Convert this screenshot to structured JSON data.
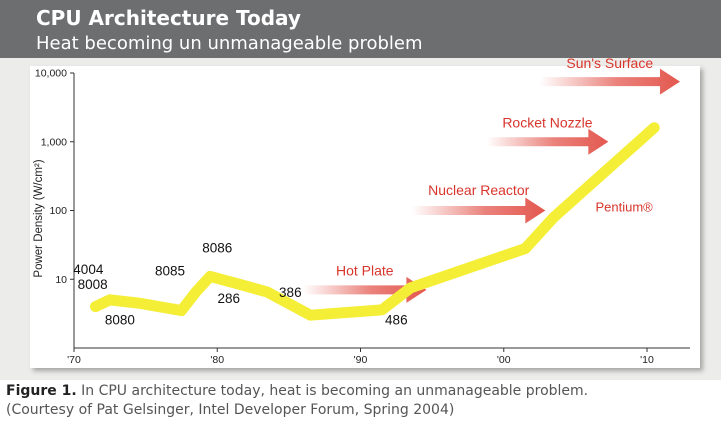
{
  "header": {
    "title": "CPU Architecture Today",
    "subtitle": "Heat becoming un unmanageable problem"
  },
  "caption": {
    "label": "Figure 1.",
    "line1": "In CPU architecture today, heat is becoming an unmanageable problem.",
    "line2": "(Courtesy of Pat Gelsinger, Intel Developer Forum, Spring 2004)"
  },
  "colors": {
    "header_bg": "#6d6e70",
    "panel_bg": "#ececea",
    "plot_bg": "#ffffff",
    "curve": "#f4ee36",
    "arrow": "#e0463c",
    "arrow_text": "#d8352c"
  },
  "chart_data": {
    "type": "line",
    "title": "",
    "xlabel": "",
    "ylabel": "Power Density (W/cm²)",
    "yscale": "log",
    "ylim": [
      1,
      10000
    ],
    "xlim": [
      1970,
      2013
    ],
    "xticks": [
      {
        "value": 1970,
        "label": "'70"
      },
      {
        "value": 1980,
        "label": "'80"
      },
      {
        "value": 1990,
        "label": "'90"
      },
      {
        "value": 2000,
        "label": "'00"
      },
      {
        "value": 2010,
        "label": "'10"
      }
    ],
    "yticks": [
      {
        "value": 10,
        "label": "10"
      },
      {
        "value": 100,
        "label": "100"
      },
      {
        "value": 1000,
        "label": "1,000"
      },
      {
        "value": 10000,
        "label": "10,000"
      }
    ],
    "grid": false,
    "series": [
      {
        "x": [
          1971.5,
          1972.5,
          1974.5,
          1977.5,
          1978.5,
          1979.5,
          1981.5,
          1983.5,
          1986.5,
          1991.5,
          1993.5,
          2001.5,
          2003.5,
          2010.5
        ],
        "y": [
          4,
          5,
          4.5,
          3.5,
          6.5,
          11,
          8.5,
          6.5,
          3,
          3.6,
          7.5,
          28,
          80,
          1600
        ]
      }
    ],
    "point_labels": [
      {
        "text": "4004",
        "x": 1971,
        "y": 14
      },
      {
        "text": "8008",
        "x": 1971.3,
        "y": 8.5
      },
      {
        "text": "8080",
        "x": 1973.2,
        "y": 2.6
      },
      {
        "text": "8085",
        "x": 1976.7,
        "y": 13.5
      },
      {
        "text": "8086",
        "x": 1980,
        "y": 29
      },
      {
        "text": "286",
        "x": 1980.8,
        "y": 5.3
      },
      {
        "text": "386",
        "x": 1985.1,
        "y": 6.5
      },
      {
        "text": "486",
        "x": 1992.5,
        "y": 2.6
      },
      {
        "text": "Pentium®",
        "x": 2008.4,
        "y": 115
      }
    ],
    "reference_arrows": [
      {
        "label": "Hot Plate",
        "x_start": 1986,
        "x_end": 1994.6,
        "y": 7,
        "label_y": 13.5
      },
      {
        "label": "Nuclear Reactor",
        "x_start": 1993.6,
        "x_end": 2002.9,
        "y": 100,
        "label_y": 200
      },
      {
        "label": "Rocket Nozzle",
        "x_start": 1998.8,
        "x_end": 2007.3,
        "y": 1000,
        "label_y": 1900
      },
      {
        "label": "Sun's Surface",
        "x_start": 2002.5,
        "x_end": 2012.3,
        "y": 7500,
        "label_y": 14000
      }
    ]
  }
}
